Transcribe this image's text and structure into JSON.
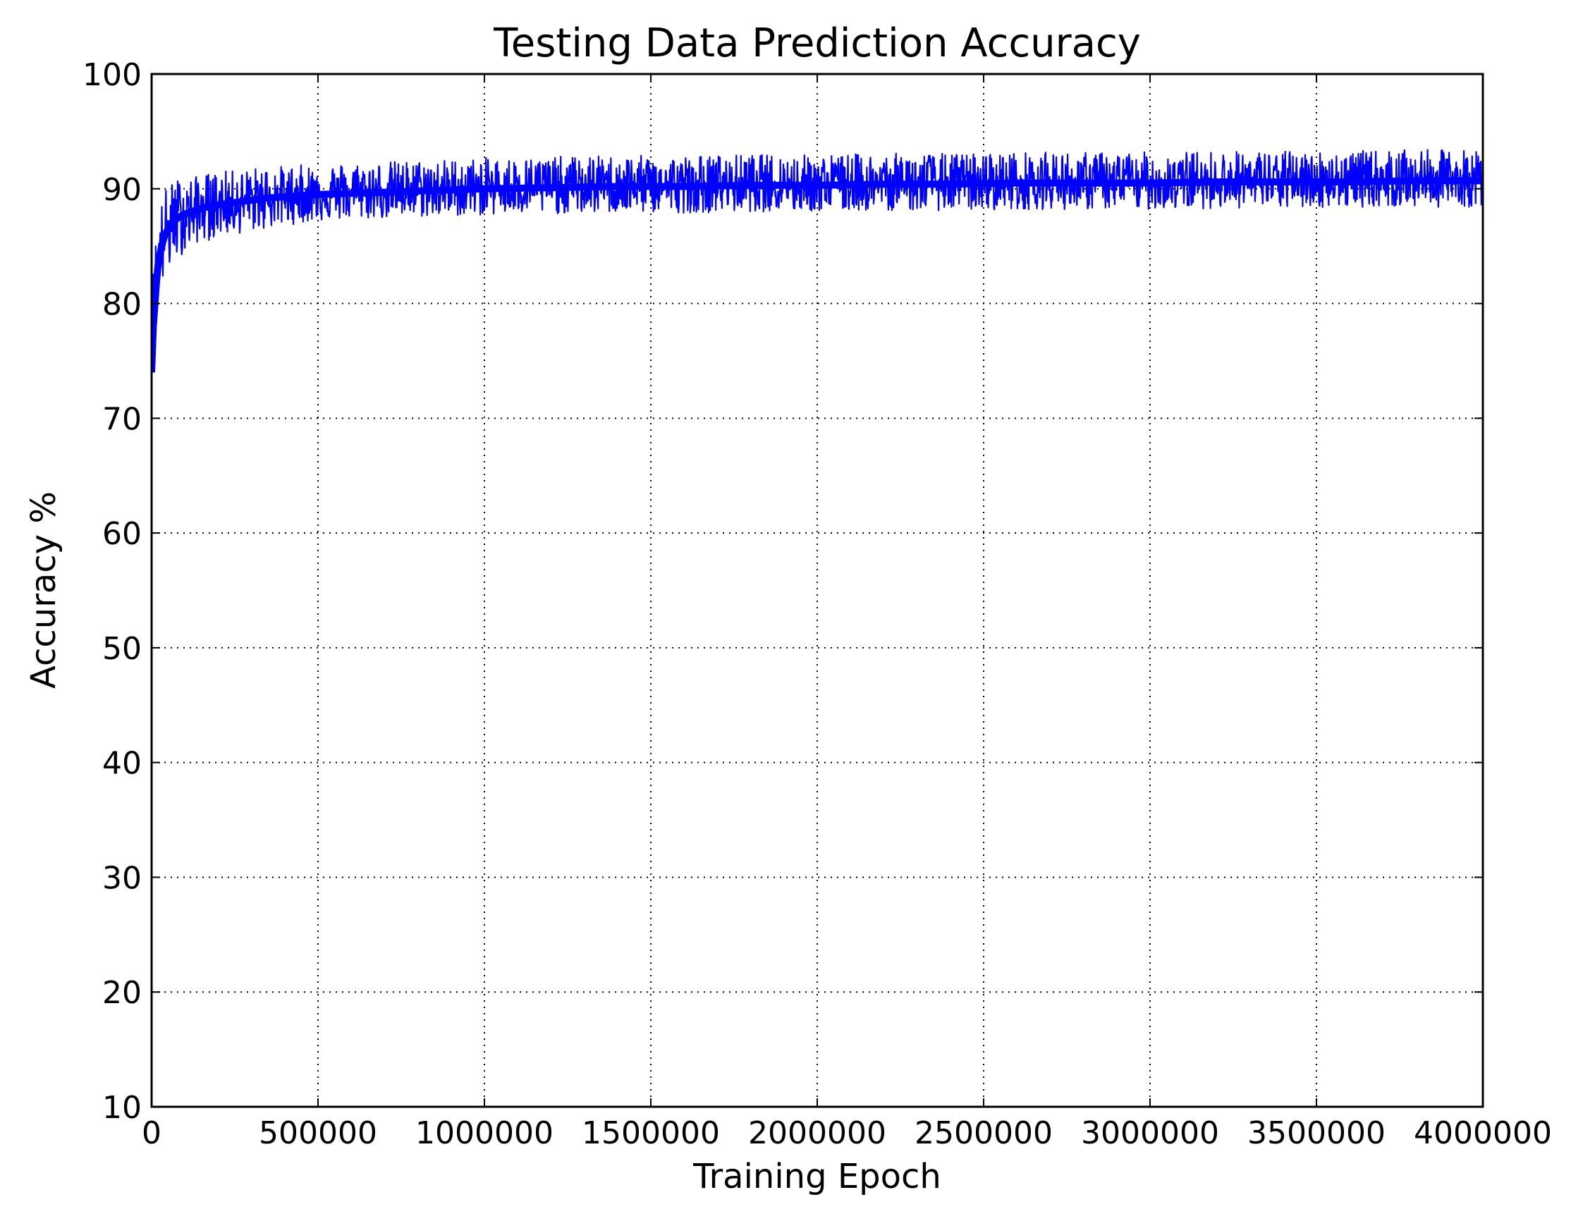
{
  "chart_data": {
    "type": "line",
    "title": "Testing Data Prediction Accuracy",
    "xlabel": "Training Epoch",
    "ylabel": "Accuracy %",
    "xlim": [
      0,
      4000000
    ],
    "ylim": [
      10,
      100
    ],
    "xticks": [
      0,
      500000,
      1000000,
      1500000,
      2000000,
      2500000,
      3000000,
      3500000,
      4000000
    ],
    "xtick_labels": [
      "0",
      "500000",
      "1000000",
      "1500000",
      "2000000",
      "2500000",
      "3000000",
      "3500000",
      "4000000"
    ],
    "yticks": [
      10,
      20,
      30,
      40,
      50,
      60,
      70,
      80,
      90,
      100
    ],
    "ytick_labels": [
      "10",
      "20",
      "30",
      "40",
      "50",
      "60",
      "70",
      "80",
      "90",
      "100"
    ],
    "grid": true,
    "series": [
      {
        "color": "#0000ff",
        "x": [
          0,
          5000,
          10000,
          15000,
          20000,
          30000,
          40000,
          50000,
          60000,
          80000,
          100000,
          120000,
          150000,
          180000,
          200000,
          250000,
          300000,
          350000,
          400000,
          450000,
          500000,
          600000,
          700000,
          800000,
          900000,
          1000000,
          1200000,
          1400000,
          1600000,
          1800000,
          2000000,
          2200000,
          2400000,
          2600000,
          2800000,
          3000000,
          3200000,
          3400000,
          3600000,
          3800000,
          4000000
        ],
        "y": [
          74,
          78,
          80,
          82,
          83.5,
          85,
          86,
          86.5,
          87,
          87.5,
          87.8,
          88,
          88.3,
          88.5,
          88.6,
          88.8,
          89,
          89.2,
          89.3,
          89.4,
          89.5,
          89.6,
          89.7,
          89.8,
          89.9,
          90,
          90.1,
          90.2,
          90.2,
          90.3,
          90.3,
          90.4,
          90.4,
          90.5,
          90.5,
          90.5,
          90.6,
          90.6,
          90.6,
          90.7,
          90.7
        ],
        "band_low": [
          74,
          74,
          76,
          78,
          80,
          81.5,
          82,
          82.5,
          83.5,
          84,
          84.5,
          85,
          85.5,
          85.5,
          86,
          86,
          86.3,
          86.5,
          86.8,
          87,
          87.2,
          87.3,
          87.4,
          87.5,
          87.6,
          87.7,
          87.8,
          87.9,
          87.9,
          88,
          88,
          88.1,
          88.1,
          88.2,
          88.2,
          88.2,
          88.3,
          88.3,
          88.4,
          88.4,
          88.4
        ],
        "band_high": [
          76,
          84,
          86,
          87,
          88,
          89,
          90,
          90.5,
          90.5,
          91,
          91,
          91,
          91.2,
          91.5,
          91.5,
          91.6,
          91.8,
          92,
          92,
          92.1,
          92.2,
          92.3,
          92.4,
          92.5,
          92.6,
          92.7,
          92.8,
          92.9,
          92.9,
          93,
          93,
          93.1,
          93.1,
          93.2,
          93.2,
          93.2,
          93.3,
          93.3,
          93.3,
          93.4,
          93.4
        ]
      }
    ]
  }
}
